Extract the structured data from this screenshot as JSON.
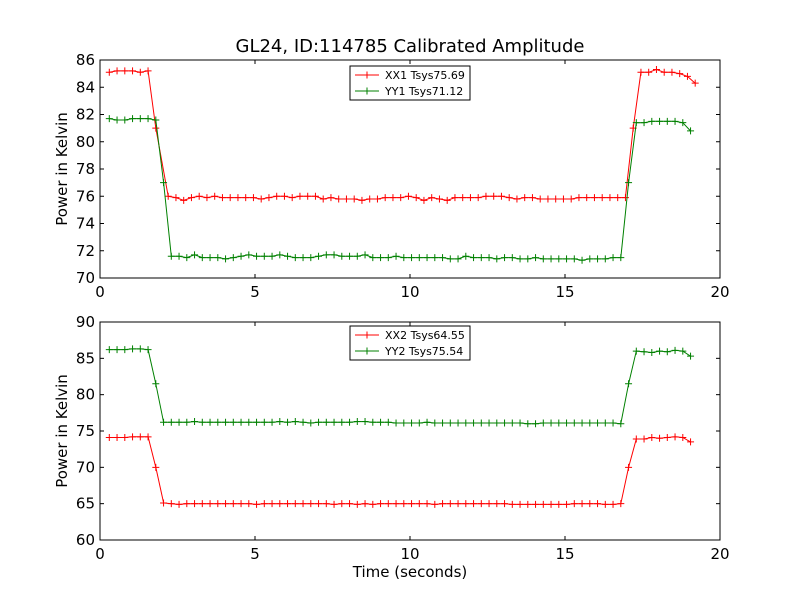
{
  "chart_data": [
    {
      "type": "line",
      "title": "GL24, ID:114785 Calibrated Amplitude",
      "xlabel": "",
      "ylabel": "Power in Kelvin",
      "xlim": [
        0,
        20
      ],
      "ylim": [
        70,
        86
      ],
      "x_ticks": [
        "0",
        "5",
        "10",
        "15",
        "20"
      ],
      "y_ticks": [
        "70",
        "72",
        "74",
        "76",
        "78",
        "80",
        "82",
        "84",
        "86"
      ],
      "legend_position": "top-center",
      "grid": false,
      "series": [
        {
          "name": "XX1 Tsys75.69",
          "color": "#ff0000",
          "x": [
            0.3,
            0.55,
            0.8,
            1.05,
            1.3,
            1.55,
            1.8,
            2.2,
            2.45,
            2.7,
            2.95,
            3.2,
            3.45,
            3.7,
            3.95,
            4.2,
            4.45,
            4.7,
            4.95,
            5.2,
            5.45,
            5.7,
            5.95,
            6.2,
            6.45,
            6.7,
            6.95,
            7.2,
            7.45,
            7.7,
            7.95,
            8.2,
            8.45,
            8.7,
            8.95,
            9.2,
            9.45,
            9.7,
            9.95,
            10.2,
            10.45,
            10.7,
            10.95,
            11.2,
            11.45,
            11.7,
            11.95,
            12.2,
            12.45,
            12.7,
            12.95,
            13.2,
            13.45,
            13.7,
            13.95,
            14.2,
            14.45,
            14.7,
            14.95,
            15.2,
            15.45,
            15.7,
            15.95,
            16.2,
            16.45,
            16.7,
            16.95,
            17.2,
            17.45,
            17.7,
            17.95,
            18.2,
            18.45,
            18.7,
            18.95,
            19.2
          ],
          "y": [
            85.1,
            85.2,
            85.2,
            85.2,
            85.1,
            85.2,
            81.0,
            76.0,
            75.9,
            75.7,
            75.9,
            76.0,
            75.9,
            76.0,
            75.9,
            75.9,
            75.9,
            75.9,
            75.9,
            75.8,
            75.9,
            76.0,
            76.0,
            75.9,
            76.0,
            76.0,
            76.0,
            75.8,
            75.9,
            75.8,
            75.8,
            75.8,
            75.7,
            75.8,
            75.8,
            75.9,
            75.9,
            75.9,
            76.0,
            75.9,
            75.7,
            75.9,
            75.8,
            75.7,
            75.9,
            75.9,
            75.9,
            75.9,
            76.0,
            76.0,
            76.0,
            75.9,
            75.8,
            75.9,
            75.9,
            75.8,
            75.8,
            75.8,
            75.8,
            75.8,
            75.9,
            75.9,
            75.9,
            75.9,
            75.9,
            75.9,
            75.9,
            81.0,
            85.1,
            85.1,
            85.3,
            85.1,
            85.1,
            85.0,
            84.8,
            84.3
          ]
        },
        {
          "name": "YY1 Tsys71.12",
          "color": "#008000",
          "x": [
            0.3,
            0.55,
            0.8,
            1.05,
            1.3,
            1.55,
            1.8,
            2.05,
            2.3,
            2.55,
            2.8,
            3.05,
            3.3,
            3.55,
            3.8,
            4.05,
            4.3,
            4.55,
            4.8,
            5.05,
            5.3,
            5.55,
            5.8,
            6.05,
            6.3,
            6.55,
            6.8,
            7.05,
            7.3,
            7.55,
            7.8,
            8.05,
            8.3,
            8.55,
            8.8,
            9.05,
            9.3,
            9.55,
            9.8,
            10.05,
            10.3,
            10.55,
            10.8,
            11.05,
            11.3,
            11.55,
            11.8,
            12.05,
            12.3,
            12.55,
            12.8,
            13.05,
            13.3,
            13.55,
            13.8,
            14.05,
            14.3,
            14.55,
            14.8,
            15.05,
            15.3,
            15.55,
            15.8,
            16.05,
            16.3,
            16.55,
            16.8,
            17.05,
            17.3,
            17.55,
            17.8,
            18.05,
            18.3,
            18.55,
            18.8,
            19.05
          ],
          "y": [
            81.7,
            81.6,
            81.6,
            81.7,
            81.7,
            81.7,
            81.6,
            77.0,
            71.6,
            71.6,
            71.5,
            71.7,
            71.5,
            71.5,
            71.5,
            71.4,
            71.5,
            71.6,
            71.7,
            71.6,
            71.6,
            71.6,
            71.7,
            71.6,
            71.5,
            71.5,
            71.5,
            71.6,
            71.7,
            71.7,
            71.6,
            71.6,
            71.6,
            71.7,
            71.5,
            71.5,
            71.5,
            71.6,
            71.5,
            71.5,
            71.5,
            71.5,
            71.5,
            71.5,
            71.4,
            71.4,
            71.6,
            71.5,
            71.5,
            71.5,
            71.4,
            71.5,
            71.5,
            71.4,
            71.4,
            71.5,
            71.4,
            71.4,
            71.4,
            71.4,
            71.4,
            71.3,
            71.4,
            71.4,
            71.4,
            71.5,
            71.5,
            77.0,
            81.4,
            81.4,
            81.5,
            81.5,
            81.5,
            81.5,
            81.4,
            80.8
          ]
        }
      ]
    },
    {
      "type": "line",
      "title": "",
      "xlabel": "Time (seconds)",
      "ylabel": "Power in Kelvin",
      "xlim": [
        0,
        20
      ],
      "ylim": [
        60,
        90
      ],
      "x_ticks": [
        "0",
        "5",
        "10",
        "15",
        "20"
      ],
      "y_ticks": [
        "60",
        "65",
        "70",
        "75",
        "80",
        "85",
        "90"
      ],
      "legend_position": "top-center",
      "grid": false,
      "series": [
        {
          "name": "XX2 Tsys64.55",
          "color": "#ff0000",
          "x": [
            0.3,
            0.55,
            0.8,
            1.05,
            1.3,
            1.55,
            1.8,
            2.05,
            2.3,
            2.55,
            2.8,
            3.05,
            3.3,
            3.55,
            3.8,
            4.05,
            4.3,
            4.55,
            4.8,
            5.05,
            5.3,
            5.55,
            5.8,
            6.05,
            6.3,
            6.55,
            6.8,
            7.05,
            7.3,
            7.55,
            7.8,
            8.05,
            8.3,
            8.55,
            8.8,
            9.05,
            9.3,
            9.55,
            9.8,
            10.05,
            10.3,
            10.55,
            10.8,
            11.05,
            11.3,
            11.55,
            11.8,
            12.05,
            12.3,
            12.55,
            12.8,
            13.05,
            13.3,
            13.55,
            13.8,
            14.05,
            14.3,
            14.55,
            14.8,
            15.05,
            15.3,
            15.55,
            15.8,
            16.05,
            16.3,
            16.55,
            16.8,
            17.05,
            17.3,
            17.55,
            17.8,
            18.05,
            18.3,
            18.55,
            18.8,
            19.05
          ],
          "y": [
            74.1,
            74.1,
            74.1,
            74.2,
            74.2,
            74.2,
            70.0,
            65.1,
            65.0,
            64.9,
            65.0,
            65.0,
            65.0,
            65.0,
            65.0,
            65.0,
            65.0,
            65.0,
            65.0,
            64.9,
            65.0,
            65.0,
            65.0,
            65.0,
            65.0,
            65.0,
            65.0,
            65.0,
            65.0,
            64.9,
            65.0,
            65.0,
            64.9,
            65.0,
            64.9,
            65.0,
            65.0,
            65.0,
            65.0,
            65.0,
            65.0,
            65.0,
            64.9,
            65.0,
            65.0,
            65.0,
            65.0,
            65.0,
            65.0,
            65.0,
            65.0,
            65.0,
            64.9,
            64.9,
            64.9,
            64.9,
            64.9,
            64.9,
            64.9,
            64.9,
            65.0,
            65.0,
            65.0,
            65.0,
            64.9,
            64.9,
            65.0,
            70.0,
            73.9,
            73.9,
            74.1,
            74.0,
            74.1,
            74.2,
            74.1,
            73.5
          ]
        },
        {
          "name": "YY2 Tsys75.54",
          "color": "#008000",
          "x": [
            0.3,
            0.55,
            0.8,
            1.05,
            1.3,
            1.55,
            1.8,
            2.05,
            2.3,
            2.55,
            2.8,
            3.05,
            3.3,
            3.55,
            3.8,
            4.05,
            4.3,
            4.55,
            4.8,
            5.05,
            5.3,
            5.55,
            5.8,
            6.05,
            6.3,
            6.55,
            6.8,
            7.05,
            7.3,
            7.55,
            7.8,
            8.05,
            8.3,
            8.55,
            8.8,
            9.05,
            9.3,
            9.55,
            9.8,
            10.05,
            10.3,
            10.55,
            10.8,
            11.05,
            11.3,
            11.55,
            11.8,
            12.05,
            12.3,
            12.55,
            12.8,
            13.05,
            13.3,
            13.55,
            13.8,
            14.05,
            14.3,
            14.55,
            14.8,
            15.05,
            15.3,
            15.55,
            15.8,
            16.05,
            16.3,
            16.55,
            16.8,
            17.05,
            17.3,
            17.55,
            17.8,
            18.05,
            18.3,
            18.55,
            18.8,
            19.05
          ],
          "y": [
            86.2,
            86.2,
            86.2,
            86.3,
            86.3,
            86.2,
            81.5,
            76.2,
            76.2,
            76.2,
            76.2,
            76.3,
            76.2,
            76.2,
            76.2,
            76.2,
            76.2,
            76.2,
            76.2,
            76.2,
            76.2,
            76.2,
            76.3,
            76.2,
            76.3,
            76.2,
            76.1,
            76.2,
            76.2,
            76.2,
            76.2,
            76.2,
            76.3,
            76.3,
            76.2,
            76.2,
            76.2,
            76.1,
            76.1,
            76.1,
            76.1,
            76.2,
            76.1,
            76.1,
            76.1,
            76.1,
            76.1,
            76.1,
            76.1,
            76.1,
            76.1,
            76.1,
            76.1,
            76.1,
            76.0,
            76.0,
            76.1,
            76.1,
            76.1,
            76.1,
            76.1,
            76.1,
            76.1,
            76.1,
            76.1,
            76.1,
            76.0,
            81.5,
            86.0,
            85.9,
            85.8,
            86.0,
            85.9,
            86.1,
            86.0,
            85.3
          ]
        }
      ]
    }
  ]
}
